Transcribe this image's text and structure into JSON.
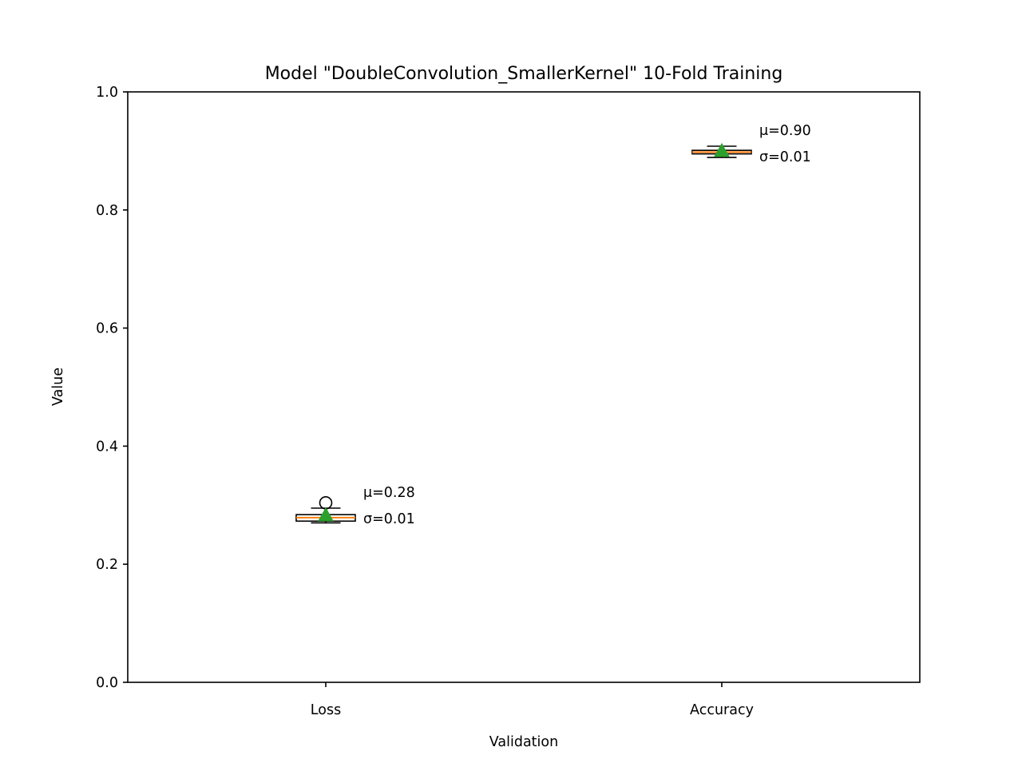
{
  "chart_data": {
    "type": "box",
    "title": "Model \"DoubleConvolution_SmallerKernel\" 10-Fold Training",
    "xlabel": "Validation",
    "ylabel": "Value",
    "ylim": [
      0.0,
      1.0
    ],
    "yticks": [
      "0.0",
      "0.2",
      "0.4",
      "0.6",
      "0.8",
      "1.0"
    ],
    "grid": false,
    "categories": [
      "Loss",
      "Accuracy"
    ],
    "boxes": [
      {
        "category": "Loss",
        "whisker_low": 0.27,
        "q1": 0.273,
        "median": 0.279,
        "q3": 0.284,
        "whisker_high": 0.295,
        "mean": 0.283,
        "outliers": [
          0.304
        ],
        "annotation": [
          "μ=0.28",
          "σ=0.01"
        ]
      },
      {
        "category": "Accuracy",
        "whisker_low": 0.889,
        "q1": 0.895,
        "median": 0.898,
        "q3": 0.901,
        "whisker_high": 0.908,
        "mean": 0.9,
        "outliers": [],
        "annotation": [
          "μ=0.90",
          "σ=0.01"
        ]
      }
    ],
    "colors": {
      "box_edge": "#000000",
      "median": "#ff7f0e",
      "mean_marker": "#2ca02c"
    }
  }
}
